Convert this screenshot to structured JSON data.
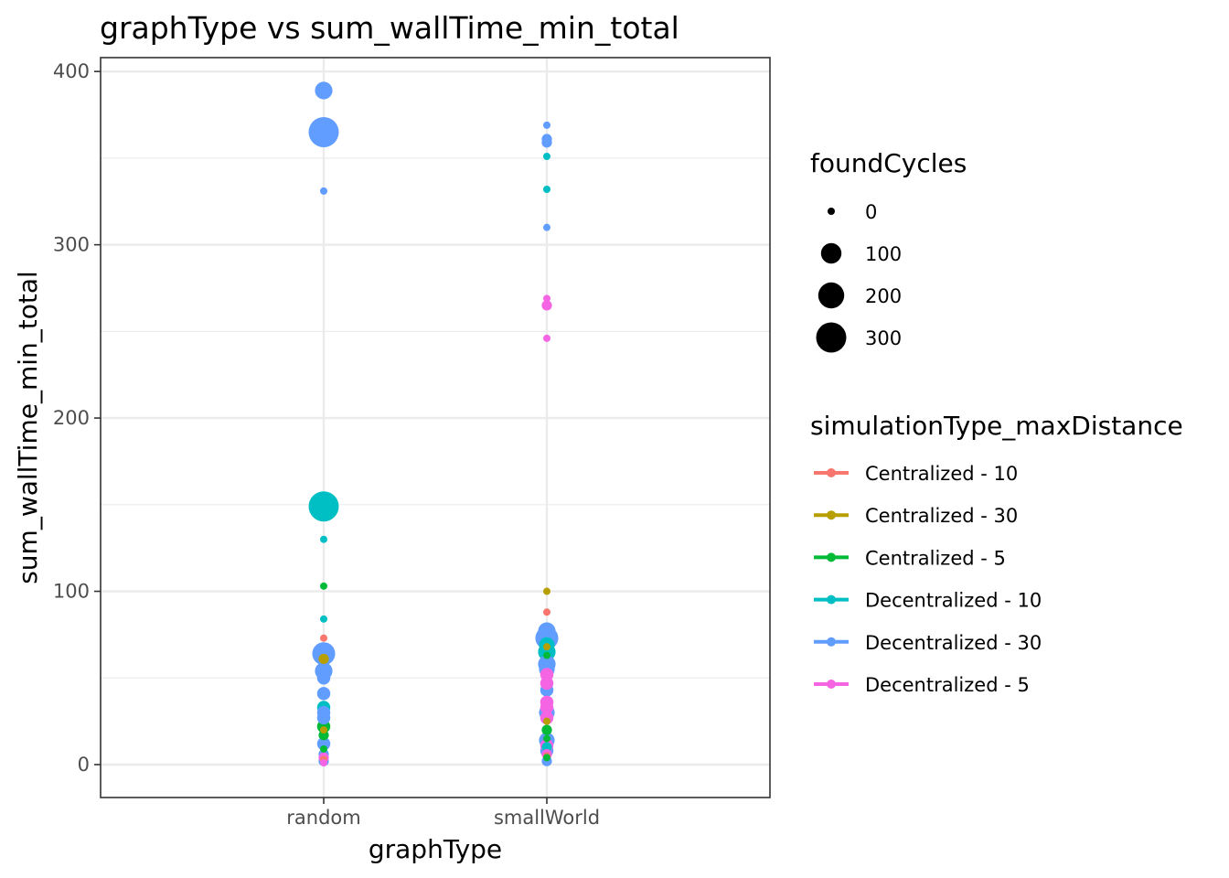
{
  "chart_data": {
    "type": "scatter",
    "title": "graphType  vs  sum_wallTime_min_total",
    "xlabel": "graphType",
    "ylabel": "sum_wallTime_min_total",
    "categories": [
      "random",
      "smallWorld"
    ],
    "ylim": [
      -19,
      408
    ],
    "yticks": [
      0,
      100,
      200,
      300,
      400
    ],
    "grid": true,
    "size_legend": {
      "title": "foundCycles",
      "values": [
        0,
        100,
        200,
        300
      ]
    },
    "color_legend": {
      "title": "simulationType_maxDistance",
      "placement": "right"
    },
    "series": [
      {
        "name": "Centralized - 10",
        "color": "#F8766D",
        "points": [
          {
            "x": "random",
            "y": 73,
            "size": 0
          },
          {
            "x": "random",
            "y": 3,
            "size": 0
          },
          {
            "x": "smallWorld",
            "y": 88,
            "size": 0
          },
          {
            "x": "smallWorld",
            "y": 5,
            "size": 0
          }
        ]
      },
      {
        "name": "Centralized - 30",
        "color": "#B79F00",
        "points": [
          {
            "x": "random",
            "y": 61,
            "size": 5
          },
          {
            "x": "random",
            "y": 20,
            "size": 0
          },
          {
            "x": "smallWorld",
            "y": 100,
            "size": 0
          },
          {
            "x": "smallWorld",
            "y": 68,
            "size": 0
          },
          {
            "x": "smallWorld",
            "y": 25,
            "size": 0
          }
        ]
      },
      {
        "name": "Centralized - 5",
        "color": "#00BA38",
        "points": [
          {
            "x": "random",
            "y": 103,
            "size": 0
          },
          {
            "x": "random",
            "y": 22,
            "size": 20
          },
          {
            "x": "random",
            "y": 17,
            "size": 5
          },
          {
            "x": "random",
            "y": 9,
            "size": 0
          },
          {
            "x": "smallWorld",
            "y": 63,
            "size": 0
          },
          {
            "x": "smallWorld",
            "y": 20,
            "size": 5
          },
          {
            "x": "smallWorld",
            "y": 15,
            "size": 0
          },
          {
            "x": "smallWorld",
            "y": 4,
            "size": 0
          }
        ]
      },
      {
        "name": "Decentralized - 10",
        "color": "#00BFC4",
        "points": [
          {
            "x": "random",
            "y": 149,
            "size": 300
          },
          {
            "x": "random",
            "y": 130,
            "size": 0
          },
          {
            "x": "random",
            "y": 84,
            "size": 0
          },
          {
            "x": "random",
            "y": 33,
            "size": 20
          },
          {
            "x": "smallWorld",
            "y": 351,
            "size": 0
          },
          {
            "x": "smallWorld",
            "y": 332,
            "size": 0
          },
          {
            "x": "smallWorld",
            "y": 69,
            "size": 40
          },
          {
            "x": "smallWorld",
            "y": 65,
            "size": 60
          },
          {
            "x": "smallWorld",
            "y": 10,
            "size": 5
          }
        ]
      },
      {
        "name": "Decentralized - 30",
        "color": "#619CFF",
        "points": [
          {
            "x": "random",
            "y": 389,
            "size": 60
          },
          {
            "x": "random",
            "y": 365,
            "size": 300
          },
          {
            "x": "random",
            "y": 331,
            "size": 0
          },
          {
            "x": "random",
            "y": 64,
            "size": 140
          },
          {
            "x": "random",
            "y": 54,
            "size": 60
          },
          {
            "x": "random",
            "y": 50,
            "size": 20
          },
          {
            "x": "random",
            "y": 41,
            "size": 20
          },
          {
            "x": "random",
            "y": 30,
            "size": 20
          },
          {
            "x": "random",
            "y": 27,
            "size": 20
          },
          {
            "x": "random",
            "y": 12,
            "size": 20
          },
          {
            "x": "random",
            "y": 6,
            "size": 5
          },
          {
            "x": "random",
            "y": 2,
            "size": 5
          },
          {
            "x": "smallWorld",
            "y": 369,
            "size": 0
          },
          {
            "x": "smallWorld",
            "y": 361,
            "size": 5
          },
          {
            "x": "smallWorld",
            "y": 359,
            "size": 5
          },
          {
            "x": "smallWorld",
            "y": 310,
            "size": 0
          },
          {
            "x": "smallWorld",
            "y": 77,
            "size": 60
          },
          {
            "x": "smallWorld",
            "y": 73,
            "size": 140
          },
          {
            "x": "smallWorld",
            "y": 58,
            "size": 60
          },
          {
            "x": "smallWorld",
            "y": 55,
            "size": 40
          },
          {
            "x": "smallWorld",
            "y": 43,
            "size": 20
          },
          {
            "x": "smallWorld",
            "y": 30,
            "size": 40
          },
          {
            "x": "smallWorld",
            "y": 14,
            "size": 40
          },
          {
            "x": "smallWorld",
            "y": 8,
            "size": 20
          },
          {
            "x": "smallWorld",
            "y": 2,
            "size": 5
          }
        ]
      },
      {
        "name": "Decentralized - 5",
        "color": "#F564E3",
        "points": [
          {
            "x": "random",
            "y": 4,
            "size": 5
          },
          {
            "x": "random",
            "y": 1,
            "size": 0
          },
          {
            "x": "smallWorld",
            "y": 269,
            "size": 0
          },
          {
            "x": "smallWorld",
            "y": 265,
            "size": 5
          },
          {
            "x": "smallWorld",
            "y": 246,
            "size": 0
          },
          {
            "x": "smallWorld",
            "y": 52,
            "size": 20
          },
          {
            "x": "smallWorld",
            "y": 47,
            "size": 20
          },
          {
            "x": "smallWorld",
            "y": 36,
            "size": 20
          },
          {
            "x": "smallWorld",
            "y": 33,
            "size": 20
          },
          {
            "x": "smallWorld",
            "y": 27,
            "size": 20
          },
          {
            "x": "smallWorld",
            "y": 11,
            "size": 20
          },
          {
            "x": "smallWorld",
            "y": 6,
            "size": 5
          }
        ]
      }
    ]
  }
}
